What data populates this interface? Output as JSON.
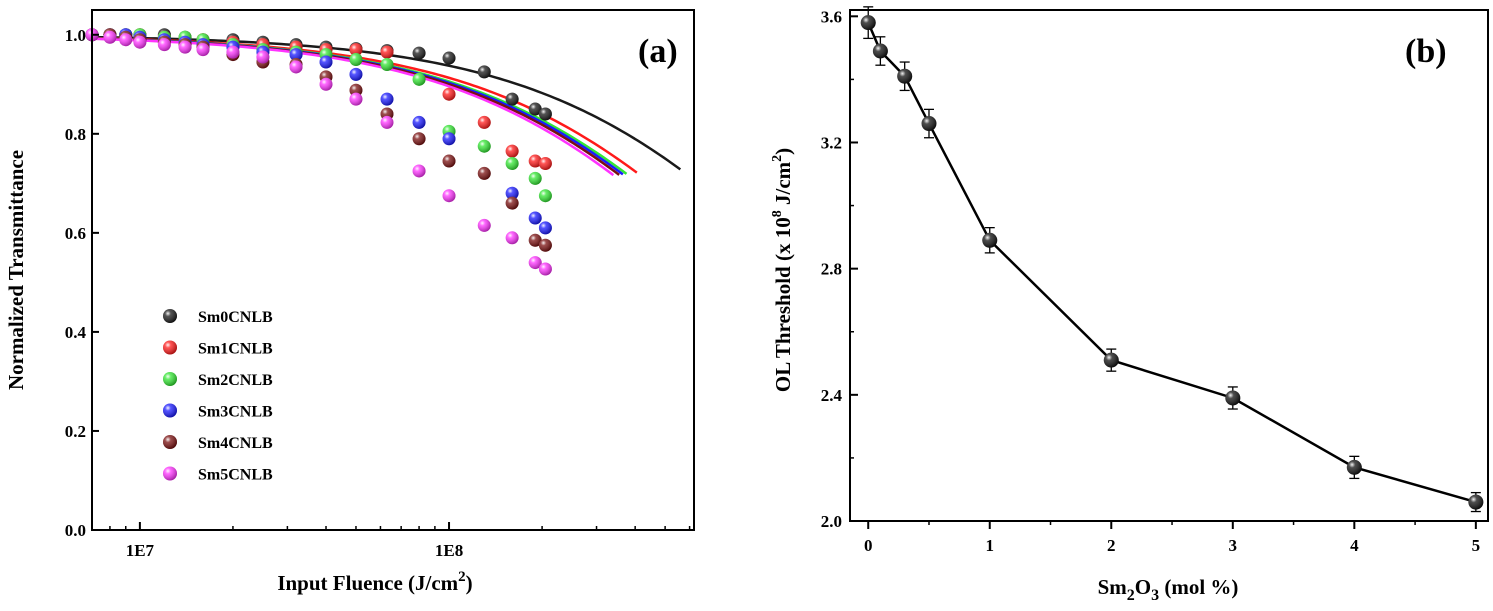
{
  "chart_data": [
    {
      "panel": "(a)",
      "type": "scatter",
      "xscale": "log",
      "xlabel": "Input Fluence (J/cm",
      "xlabel_sup": "2",
      "xlabel_end": ")",
      "ylabel": "Normalized Transmittance",
      "xlim": [
        7000000,
        620000000
      ],
      "ylim": [
        0.0,
        1.05
      ],
      "xticks": [
        {
          "value": 10000000,
          "label": "1E7"
        },
        {
          "value": 100000000,
          "label": "1E8"
        }
      ],
      "yticks": [
        {
          "value": 0.0,
          "label": "0.0"
        },
        {
          "value": 0.2,
          "label": "0.2"
        },
        {
          "value": 0.4,
          "label": "0.4"
        },
        {
          "value": 0.6,
          "label": "0.6"
        },
        {
          "value": 0.8,
          "label": "0.8"
        },
        {
          "value": 1.0,
          "label": "1.0"
        }
      ],
      "legend_position": "bottom-left",
      "series": [
        {
          "name": "Sm0CNLB",
          "color": "#1a1a1a",
          "fit_fsat": 1500000000,
          "fit_end": 560000000,
          "x": [
            7000000,
            8000000,
            9000000,
            10000000,
            12000000,
            14000000,
            16000000,
            20000000,
            25000000,
            32000000,
            40000000,
            50000000,
            63000000,
            80000000,
            100000000,
            130000000,
            160000000,
            190000000,
            205000000
          ],
          "y": [
            1.0,
            1.0,
            1.0,
            1.0,
            1.0,
            0.995,
            0.99,
            0.99,
            0.985,
            0.98,
            0.975,
            0.972,
            0.968,
            0.963,
            0.953,
            0.925,
            0.87,
            0.85,
            0.84
          ]
        },
        {
          "name": "Sm1CNLB",
          "color": "#ff1a1a",
          "fit_fsat": 1050000000,
          "fit_end": 405000000,
          "x": [
            7000000,
            8000000,
            9000000,
            10000000,
            12000000,
            14000000,
            16000000,
            20000000,
            25000000,
            32000000,
            40000000,
            50000000,
            63000000,
            100000000,
            130000000,
            160000000,
            190000000,
            205000000
          ],
          "y": [
            1.0,
            1.0,
            1.0,
            1.0,
            0.995,
            0.993,
            0.99,
            0.985,
            0.98,
            0.975,
            0.97,
            0.97,
            0.965,
            0.88,
            0.823,
            0.765,
            0.745,
            0.74
          ]
        },
        {
          "name": "Sm2CNLB",
          "color": "#33e633",
          "fit_fsat": 960000000,
          "fit_end": 375000000,
          "x": [
            7000000,
            8000000,
            9000000,
            10000000,
            12000000,
            14000000,
            16000000,
            20000000,
            25000000,
            32000000,
            40000000,
            50000000,
            63000000,
            80000000,
            100000000,
            130000000,
            160000000,
            190000000,
            205000000
          ],
          "y": [
            1.0,
            1.0,
            1.0,
            1.0,
            0.995,
            0.995,
            0.99,
            0.98,
            0.97,
            0.965,
            0.96,
            0.95,
            0.94,
            0.91,
            0.805,
            0.775,
            0.74,
            0.71,
            0.675
          ]
        },
        {
          "name": "Sm3CNLB",
          "color": "#1a1aff",
          "fit_fsat": 930000000,
          "fit_end": 365000000,
          "x": [
            7000000,
            8000000,
            9000000,
            10000000,
            12000000,
            14000000,
            16000000,
            20000000,
            25000000,
            32000000,
            40000000,
            50000000,
            63000000,
            80000000,
            100000000,
            160000000,
            190000000,
            205000000
          ],
          "y": [
            1.0,
            1.0,
            1.0,
            0.995,
            0.99,
            0.985,
            0.98,
            0.975,
            0.965,
            0.96,
            0.945,
            0.92,
            0.87,
            0.823,
            0.79,
            0.68,
            0.63,
            0.61
          ]
        },
        {
          "name": "Sm4CNLB",
          "color": "#7a1010",
          "fit_fsat": 900000000,
          "fit_end": 355000000,
          "x": [
            7000000,
            8000000,
            9000000,
            10000000,
            12000000,
            14000000,
            16000000,
            20000000,
            25000000,
            32000000,
            40000000,
            50000000,
            63000000,
            80000000,
            100000000,
            130000000,
            160000000,
            190000000,
            205000000
          ],
          "y": [
            1.0,
            1.0,
            0.995,
            0.99,
            0.985,
            0.98,
            0.975,
            0.96,
            0.945,
            0.94,
            0.915,
            0.888,
            0.84,
            0.79,
            0.745,
            0.72,
            0.66,
            0.585,
            0.575
          ]
        },
        {
          "name": "Sm5CNLB",
          "color": "#ff33ff",
          "fit_fsat": 860000000,
          "fit_end": 340000000,
          "x": [
            7000000,
            8000000,
            9000000,
            10000000,
            12000000,
            14000000,
            16000000,
            20000000,
            25000000,
            32000000,
            40000000,
            50000000,
            63000000,
            80000000,
            100000000,
            130000000,
            160000000,
            190000000,
            205000000
          ],
          "y": [
            1.0,
            0.995,
            0.99,
            0.985,
            0.98,
            0.975,
            0.97,
            0.965,
            0.955,
            0.935,
            0.9,
            0.87,
            0.823,
            0.725,
            0.675,
            0.615,
            0.59,
            0.54,
            0.527
          ]
        }
      ]
    },
    {
      "panel": "(b)",
      "type": "line",
      "xlabel_prefix": "Sm",
      "xlabel_sub1": "2",
      "xlabel_mid": "O",
      "xlabel_sub2": "3",
      "xlabel_suffix": " (mol %)",
      "ylabel": "OL Threshold (x 10",
      "ylabel_sup1": "8",
      "ylabel_mid": " J/cm",
      "ylabel_sup2": "2",
      "ylabel_end": ")",
      "xlim": [
        -0.15,
        5.1
      ],
      "ylim": [
        2.0,
        3.62
      ],
      "xticks": [
        {
          "value": 0,
          "label": "0"
        },
        {
          "value": 1,
          "label": "1"
        },
        {
          "value": 2,
          "label": "2"
        },
        {
          "value": 3,
          "label": "3"
        },
        {
          "value": 4,
          "label": "4"
        },
        {
          "value": 5,
          "label": "5"
        }
      ],
      "yticks": [
        {
          "value": 2.0,
          "label": "2.0"
        },
        {
          "value": 2.4,
          "label": "2.4"
        },
        {
          "value": 2.8,
          "label": "2.8"
        },
        {
          "value": 3.2,
          "label": "3.2"
        },
        {
          "value": 3.6,
          "label": "3.6"
        }
      ],
      "series": [
        {
          "name": "OL Threshold",
          "color": "#000000",
          "x": [
            0,
            0.1,
            0.3,
            0.5,
            1,
            2,
            3,
            4,
            5
          ],
          "y": [
            3.58,
            3.49,
            3.41,
            3.26,
            2.89,
            2.51,
            2.39,
            2.17,
            2.06
          ],
          "err": [
            0.05,
            0.045,
            0.045,
            0.045,
            0.04,
            0.035,
            0.035,
            0.035,
            0.03
          ]
        }
      ]
    }
  ]
}
